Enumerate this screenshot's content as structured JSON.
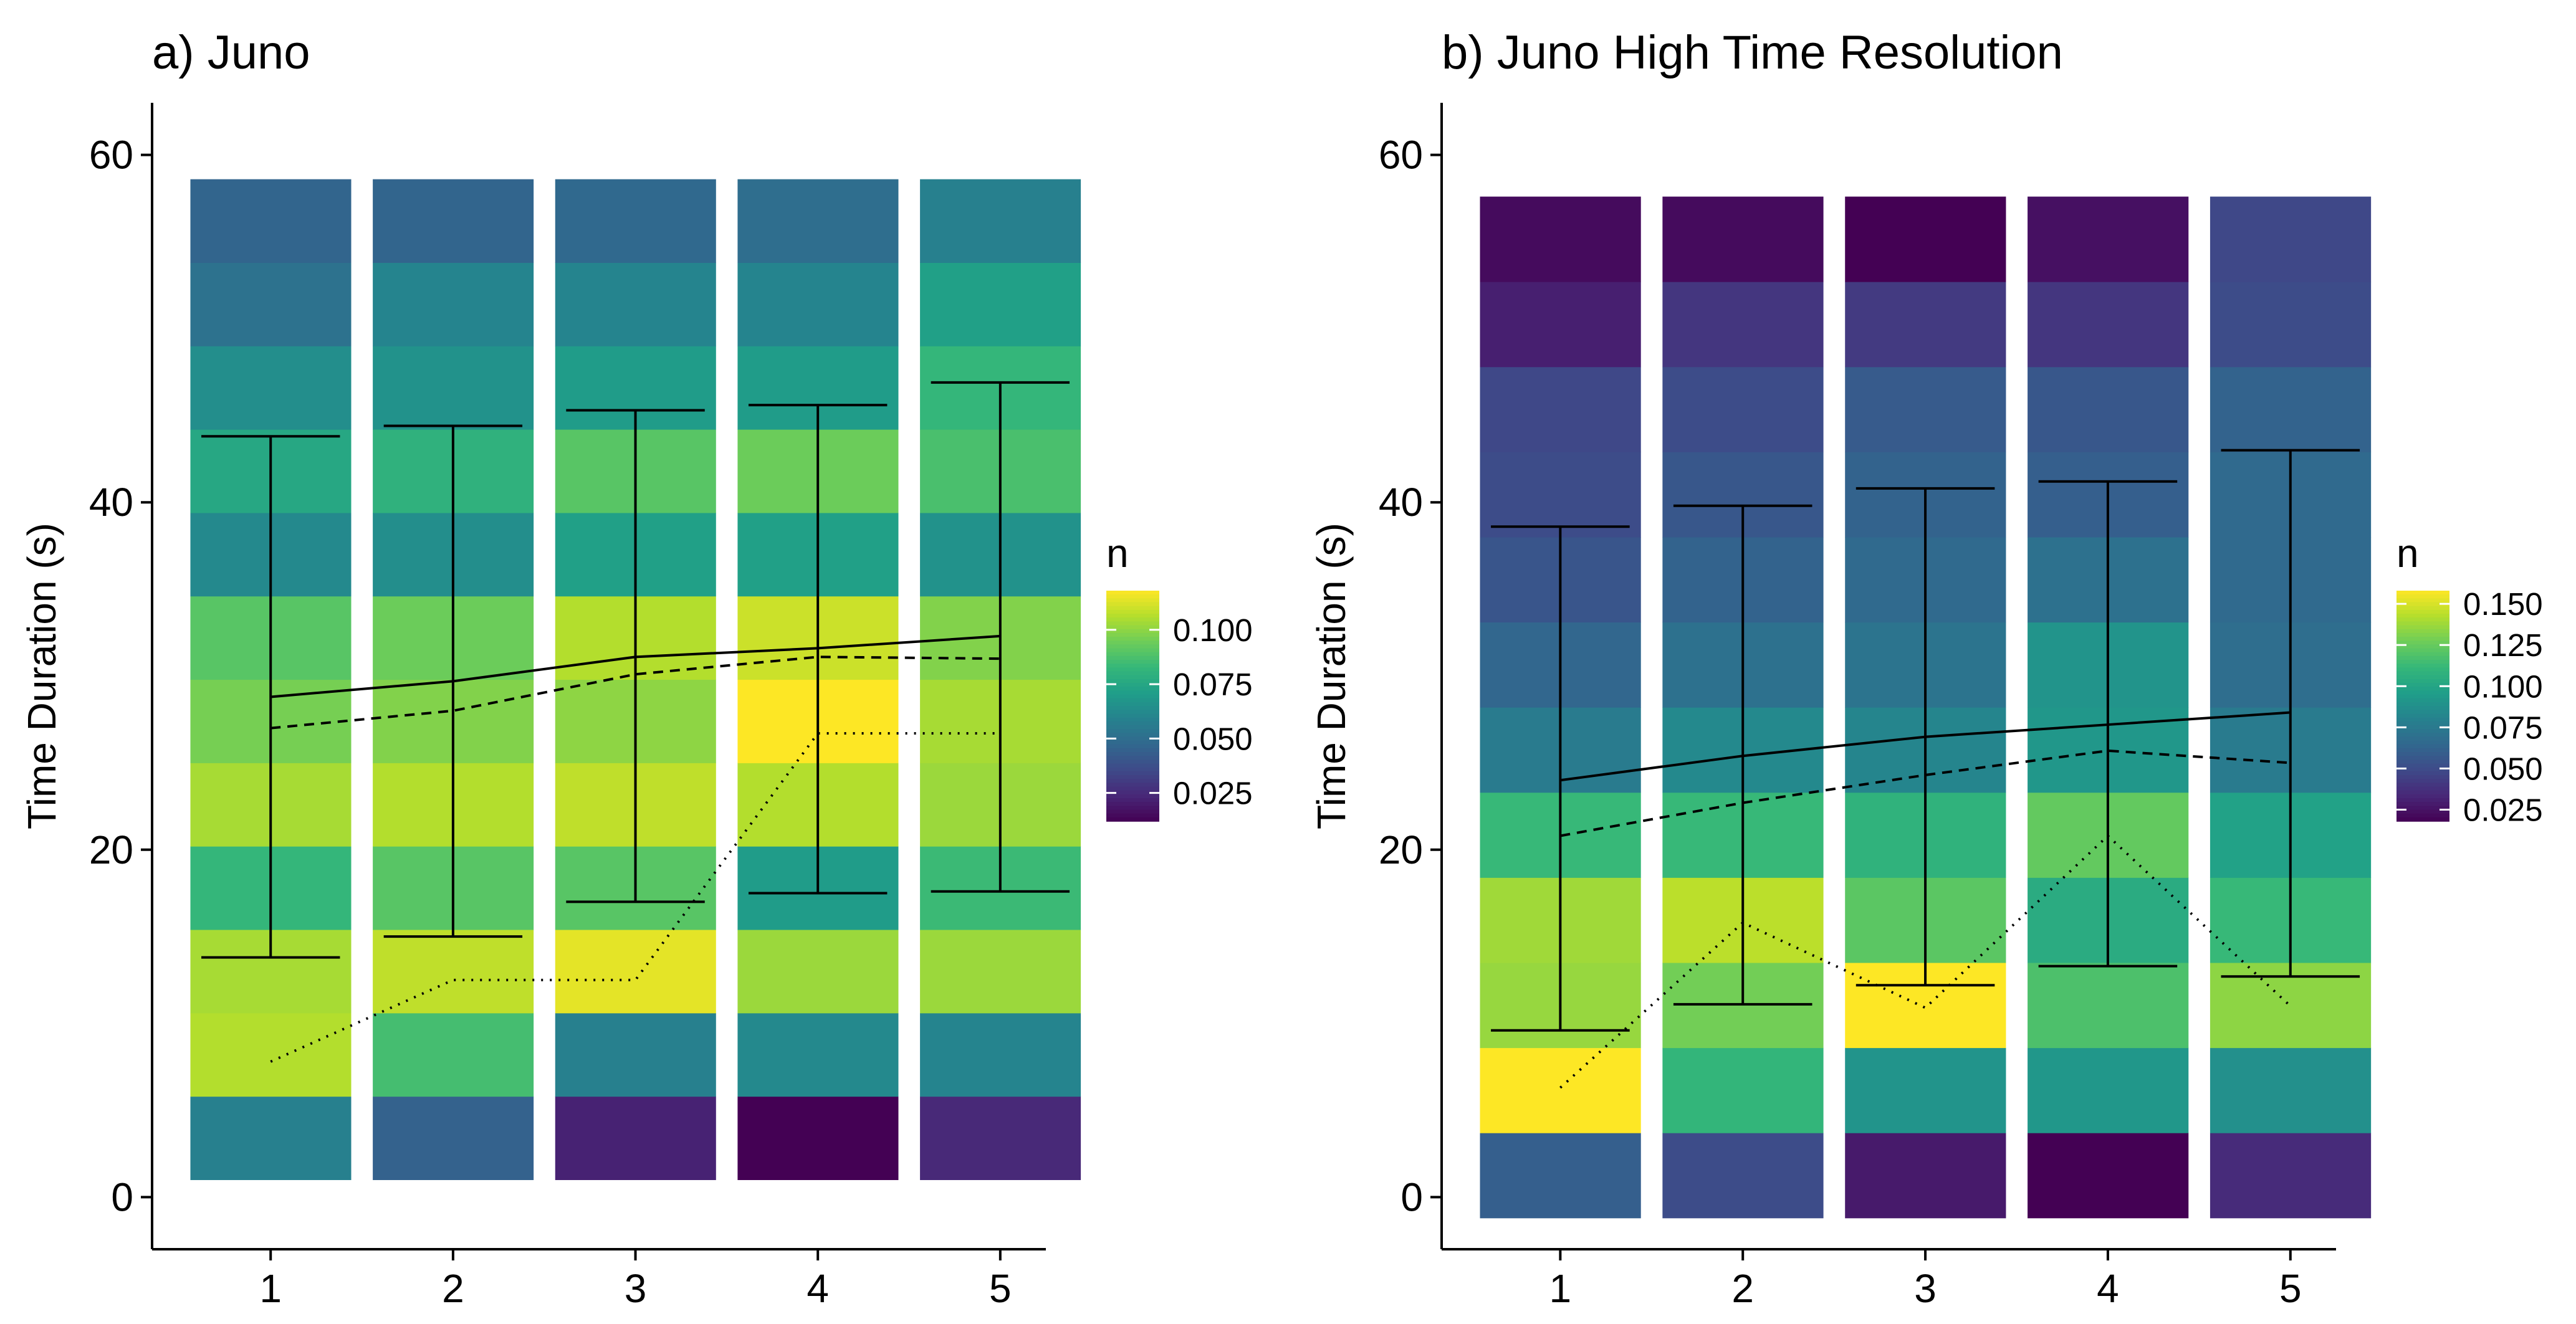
{
  "chart_data": [
    {
      "type": "heatmap",
      "title": "a) Juno",
      "xlabel": "",
      "ylabel": "Time Duration (s)",
      "x": [
        1,
        2,
        3,
        4,
        5
      ],
      "x_ticks": [
        "1",
        "2",
        "3",
        "4",
        "5"
      ],
      "y_ticks": [
        "0",
        "20",
        "40",
        "60"
      ],
      "xlim": [
        0.35,
        5.25
      ],
      "ylim": [
        -3,
        63
      ],
      "y_bins": [
        [
          1,
          5.8
        ],
        [
          5.8,
          10.6
        ],
        [
          10.6,
          15.4
        ],
        [
          15.4,
          20.2
        ],
        [
          20.2,
          25
        ],
        [
          25,
          29.8
        ],
        [
          29.8,
          34.6
        ],
        [
          34.6,
          39.4
        ],
        [
          39.4,
          44.2
        ],
        [
          44.2,
          49
        ],
        [
          49,
          53.8
        ],
        [
          53.8,
          58.6
        ]
      ],
      "values": [
        [
          0.058,
          0.045,
          0.022,
          0.012,
          0.024
        ],
        [
          0.106,
          0.086,
          0.058,
          0.062,
          0.06
        ],
        [
          0.104,
          0.108,
          0.114,
          0.102,
          0.102
        ],
        [
          0.082,
          0.09,
          0.09,
          0.07,
          0.084
        ],
        [
          0.104,
          0.106,
          0.108,
          0.106,
          0.102
        ],
        [
          0.096,
          0.098,
          0.1,
          0.118,
          0.104
        ],
        [
          0.09,
          0.094,
          0.106,
          0.11,
          0.098
        ],
        [
          0.062,
          0.064,
          0.072,
          0.072,
          0.066
        ],
        [
          0.075,
          0.08,
          0.09,
          0.094,
          0.087
        ],
        [
          0.064,
          0.066,
          0.07,
          0.07,
          0.082
        ],
        [
          0.052,
          0.06,
          0.06,
          0.06,
          0.072
        ],
        [
          0.046,
          0.046,
          0.048,
          0.05,
          0.058
        ]
      ],
      "mean": [
        28.8,
        29.7,
        31.1,
        31.6,
        32.3
      ],
      "median": [
        27.0,
        28.0,
        30.1,
        31.1,
        31.0
      ],
      "mode": [
        7.8,
        12.5,
        12.5,
        26.7,
        26.7
      ],
      "error_bars": [
        [
          13.8,
          43.8
        ],
        [
          15.0,
          44.4
        ],
        [
          17.0,
          45.3
        ],
        [
          17.5,
          45.6
        ],
        [
          17.6,
          46.9
        ]
      ],
      "legend": {
        "title": "n",
        "ticks": [
          "0.025",
          "0.050",
          "0.075",
          "0.100"
        ],
        "tick_values": [
          0.025,
          0.05,
          0.075,
          0.1
        ],
        "range": [
          0.012,
          0.118
        ]
      },
      "grid": false
    },
    {
      "type": "heatmap",
      "title": "b) Juno High Time Resolution",
      "xlabel": "",
      "ylabel": "Time Duration (s)",
      "x": [
        1,
        2,
        3,
        4,
        5
      ],
      "x_ticks": [
        "1",
        "2",
        "3",
        "4",
        "5"
      ],
      "y_ticks": [
        "0",
        "20",
        "40",
        "60"
      ],
      "xlim": [
        0.35,
        5.25
      ],
      "ylim": [
        -3,
        63
      ],
      "y_bins": [
        [
          -1.2,
          3.7
        ],
        [
          3.7,
          8.6
        ],
        [
          8.6,
          13.5
        ],
        [
          13.5,
          18.4
        ],
        [
          18.4,
          23.3
        ],
        [
          23.3,
          28.2
        ],
        [
          28.2,
          33.1
        ],
        [
          33.1,
          38
        ],
        [
          38,
          42.9
        ],
        [
          42.9,
          47.8
        ],
        [
          47.8,
          52.7
        ],
        [
          52.7,
          57.6
        ]
      ],
      "values": [
        [
          0.06,
          0.05,
          0.028,
          0.018,
          0.035
        ],
        [
          0.158,
          0.11,
          0.09,
          0.092,
          0.088
        ],
        [
          0.136,
          0.128,
          0.158,
          0.118,
          0.134
        ],
        [
          0.138,
          0.144,
          0.122,
          0.104,
          0.112
        ],
        [
          0.112,
          0.112,
          0.108,
          0.124,
          0.098
        ],
        [
          0.076,
          0.084,
          0.082,
          0.092,
          0.076
        ],
        [
          0.064,
          0.07,
          0.072,
          0.09,
          0.068
        ],
        [
          0.055,
          0.062,
          0.066,
          0.07,
          0.066
        ],
        [
          0.05,
          0.056,
          0.062,
          0.06,
          0.066
        ],
        [
          0.048,
          0.05,
          0.058,
          0.056,
          0.062
        ],
        [
          0.03,
          0.04,
          0.042,
          0.04,
          0.05
        ],
        [
          0.022,
          0.022,
          0.018,
          0.024,
          0.048
        ]
      ],
      "mean": [
        24.0,
        25.4,
        26.5,
        27.2,
        27.9
      ],
      "median": [
        20.8,
        22.7,
        24.3,
        25.7,
        25.0
      ],
      "mode": [
        6.3,
        15.8,
        10.9,
        20.8,
        11.0
      ],
      "error_bars": [
        [
          9.6,
          38.6
        ],
        [
          11.1,
          39.8
        ],
        [
          12.2,
          40.8
        ],
        [
          13.3,
          41.2
        ],
        [
          12.7,
          43.0
        ]
      ],
      "legend": {
        "title": "n",
        "ticks": [
          "0.025",
          "0.050",
          "0.075",
          "0.100",
          "0.125",
          "0.150"
        ],
        "tick_values": [
          0.025,
          0.05,
          0.075,
          0.1,
          0.125,
          0.15
        ],
        "range": [
          0.018,
          0.158
        ]
      },
      "grid": false
    }
  ]
}
